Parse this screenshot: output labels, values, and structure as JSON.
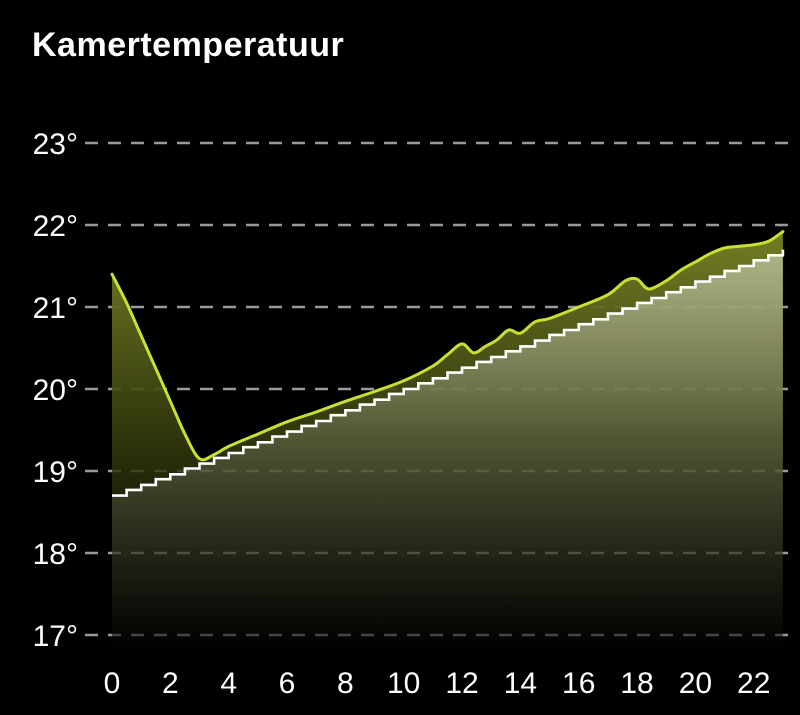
{
  "title": "Kamertemperatuur",
  "colors": {
    "background": "#000000",
    "title": "#ffffff",
    "grid": "#9a9a9a",
    "axis_labels": "#ffffff",
    "measured_line": "#c9e033",
    "measured_fill_top": "#7a8526",
    "measured_fill_mid": "#3c420f",
    "setpoint_line": "#ffffff"
  },
  "chart_data": {
    "type": "area",
    "title": "Kamertemperatuur",
    "xlabel": "",
    "ylabel": "",
    "x_ticks": [
      0,
      2,
      4,
      6,
      8,
      10,
      12,
      14,
      16,
      18,
      20,
      22
    ],
    "y_ticks": [
      17,
      18,
      19,
      20,
      21,
      22,
      23
    ],
    "y_tick_labels": [
      "17°",
      "18°",
      "19°",
      "20°",
      "21°",
      "22°",
      "23°"
    ],
    "xlim": [
      0,
      23
    ],
    "ylim": [
      17,
      23.3
    ],
    "grid": "dashed-horizontal",
    "legend": "none",
    "series": [
      {
        "name": "measured-temperature",
        "style": "smooth-area",
        "points": [
          [
            0,
            21.4
          ],
          [
            0.5,
            21.05
          ],
          [
            1,
            20.65
          ],
          [
            1.5,
            20.25
          ],
          [
            2,
            19.85
          ],
          [
            2.5,
            19.45
          ],
          [
            3,
            19.15
          ],
          [
            3.5,
            19.2
          ],
          [
            4,
            19.3
          ],
          [
            5,
            19.45
          ],
          [
            6,
            19.6
          ],
          [
            7,
            19.72
          ],
          [
            8,
            19.85
          ],
          [
            9,
            19.97
          ],
          [
            10,
            20.1
          ],
          [
            11,
            20.28
          ],
          [
            11.5,
            20.42
          ],
          [
            12,
            20.55
          ],
          [
            12.4,
            20.44
          ],
          [
            12.8,
            20.52
          ],
          [
            13.2,
            20.6
          ],
          [
            13.6,
            20.72
          ],
          [
            14,
            20.68
          ],
          [
            14.5,
            20.82
          ],
          [
            15,
            20.86
          ],
          [
            16,
            21.0
          ],
          [
            17,
            21.15
          ],
          [
            17.6,
            21.32
          ],
          [
            18,
            21.34
          ],
          [
            18.4,
            21.22
          ],
          [
            19,
            21.32
          ],
          [
            19.5,
            21.45
          ],
          [
            20,
            21.55
          ],
          [
            20.5,
            21.65
          ],
          [
            21,
            21.72
          ],
          [
            21.5,
            21.74
          ],
          [
            22,
            21.76
          ],
          [
            22.5,
            21.8
          ],
          [
            23,
            21.92
          ]
        ]
      },
      {
        "name": "setpoint-temperature",
        "style": "step",
        "x_start": 0,
        "x_step": 0.5,
        "values": [
          18.7,
          18.77,
          18.83,
          18.9,
          18.96,
          19.03,
          19.09,
          19.16,
          19.22,
          19.29,
          19.35,
          19.42,
          19.48,
          19.55,
          19.61,
          19.68,
          19.74,
          19.81,
          19.87,
          19.94,
          20.0,
          20.07,
          20.13,
          20.2,
          20.26,
          20.33,
          20.39,
          20.46,
          20.52,
          20.59,
          20.66,
          20.72,
          20.79,
          20.85,
          20.92,
          20.98,
          21.05,
          21.11,
          21.18,
          21.24,
          21.31,
          21.37,
          21.44,
          21.5,
          21.57,
          21.63,
          21.7
        ]
      }
    ]
  }
}
